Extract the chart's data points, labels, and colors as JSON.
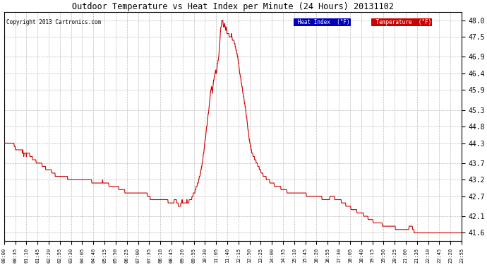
{
  "title": "Outdoor Temperature vs Heat Index per Minute (24 Hours) 20131102",
  "copyright": "Copyright 2013 Cartronics.com",
  "ylabel_right_ticks": [
    41.6,
    42.1,
    42.7,
    43.2,
    43.7,
    44.3,
    44.8,
    45.3,
    45.9,
    46.4,
    46.9,
    47.5,
    48.0
  ],
  "ylim": [
    41.35,
    48.25
  ],
  "line_color": "#cc0000",
  "background_color": "#ffffff",
  "grid_color": "#bbbbbb",
  "legend_heat_index_bg": "#0000bb",
  "legend_temp_bg": "#cc0000",
  "legend_text_color": "#ffffff",
  "xtick_labels": [
    "00:00",
    "00:35",
    "01:10",
    "01:45",
    "02:20",
    "02:55",
    "03:30",
    "04:05",
    "04:40",
    "05:15",
    "05:50",
    "06:25",
    "07:00",
    "07:35",
    "08:10",
    "08:45",
    "09:20",
    "09:55",
    "10:30",
    "11:05",
    "11:40",
    "12:15",
    "12:50",
    "13:25",
    "14:00",
    "14:35",
    "15:10",
    "15:45",
    "16:20",
    "16:55",
    "17:30",
    "18:05",
    "18:40",
    "19:15",
    "19:50",
    "20:25",
    "21:00",
    "21:35",
    "22:10",
    "22:45",
    "23:20",
    "23:55"
  ],
  "num_points": 1440,
  "figwidth": 6.9,
  "figheight": 3.75,
  "dpi": 100
}
